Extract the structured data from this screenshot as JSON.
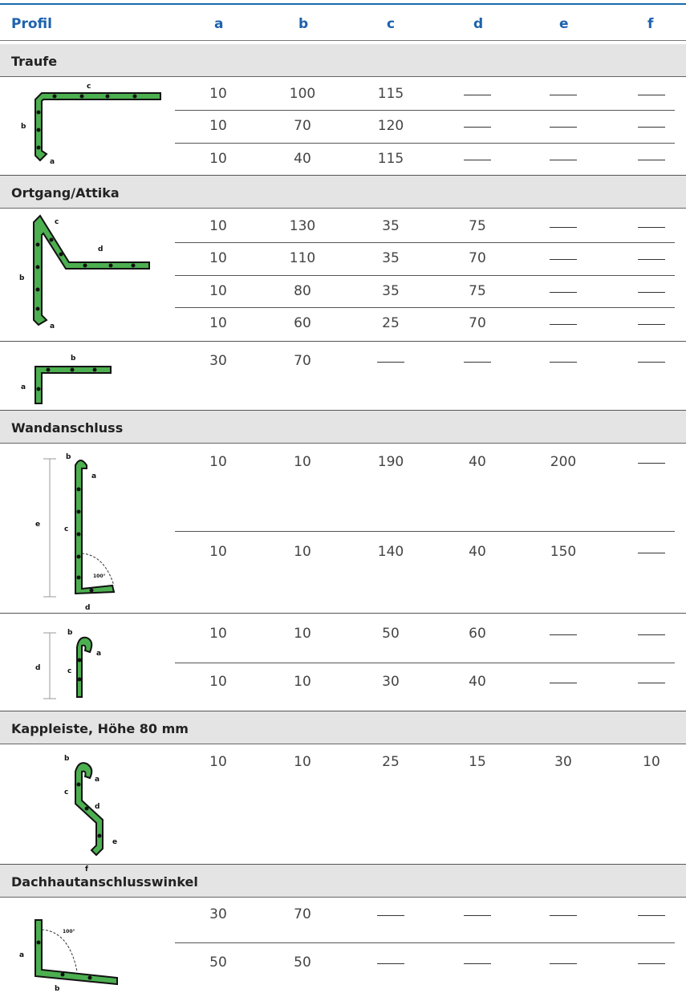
{
  "header": {
    "profil": "Profil",
    "cols": [
      "a",
      "b",
      "c",
      "d",
      "e",
      "f"
    ]
  },
  "sections": [
    {
      "title": "Traufe",
      "groups": [
        {
          "rows": [
            [
              "10",
              "100",
              "115",
              "—",
              "—",
              "—"
            ],
            [
              "10",
              "70",
              "120",
              "—",
              "—",
              "—"
            ],
            [
              "10",
              "40",
              "115",
              "—",
              "—",
              "—"
            ]
          ]
        }
      ]
    },
    {
      "title": "Ortgang/Attika",
      "groups": [
        {
          "rows": [
            [
              "10",
              "130",
              "35",
              "75",
              "—",
              "—"
            ],
            [
              "10",
              "110",
              "35",
              "70",
              "—",
              "—"
            ],
            [
              "10",
              "80",
              "35",
              "75",
              "—",
              "—"
            ],
            [
              "10",
              "60",
              "25",
              "70",
              "—",
              "—"
            ]
          ]
        },
        {
          "rows": [
            [
              "30",
              "70",
              "—",
              "—",
              "—",
              "—"
            ]
          ]
        }
      ]
    },
    {
      "title": "Wandanschluss",
      "groups": [
        {
          "rows": [
            [
              "10",
              "10",
              "190",
              "40",
              "200",
              "—"
            ],
            [
              "10",
              "10",
              "140",
              "40",
              "150",
              "—"
            ]
          ]
        },
        {
          "rows": [
            [
              "10",
              "10",
              "50",
              "60",
              "—",
              "—"
            ],
            [
              "10",
              "10",
              "30",
              "40",
              "—",
              "—"
            ]
          ]
        }
      ]
    },
    {
      "title": "Kappleiste, Höhe 80 mm",
      "groups": [
        {
          "rows": [
            [
              "10",
              "10",
              "25",
              "15",
              "30",
              "10"
            ]
          ]
        }
      ]
    },
    {
      "title": "Dachhautanschlusswinkel",
      "groups": [
        {
          "rows": [
            [
              "30",
              "70",
              "—",
              "—",
              "—",
              "—"
            ],
            [
              "50",
              "50",
              "—",
              "—",
              "—",
              "—"
            ]
          ]
        }
      ]
    }
  ],
  "diagram_labels": {
    "traufe": [
      "c",
      "b",
      "a"
    ],
    "ortgang1": [
      "c",
      "d",
      "b",
      "a"
    ],
    "ortgang2": [
      "b",
      "a"
    ],
    "wand1": [
      "b",
      "a",
      "e",
      "c",
      "100°",
      "d"
    ],
    "wand2": [
      "b",
      "a",
      "d",
      "c"
    ],
    "kapp": [
      "b",
      "a",
      "c",
      "d",
      "e",
      "f"
    ],
    "dach": [
      "a",
      "100°",
      "b"
    ]
  },
  "colors": {
    "profile_green": "#4caf50",
    "accent_blue": "#1d62ad",
    "section_bg": "#e4e4e4"
  }
}
